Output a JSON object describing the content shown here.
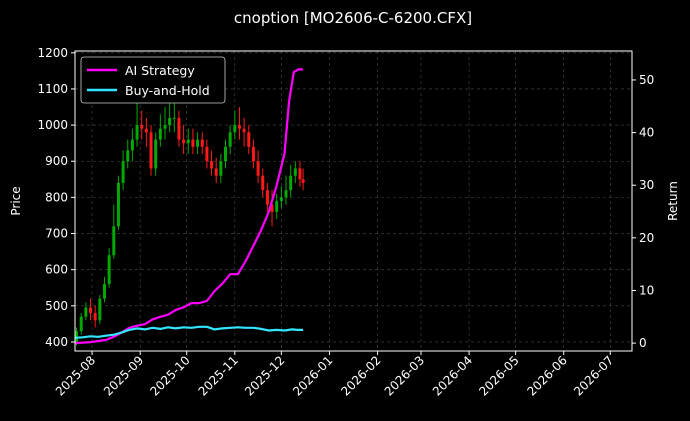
{
  "chart_data": {
    "type": "line",
    "title": "cnoption [MO2606-C-6200.CFX]",
    "xlabel": "",
    "ylabel_left": "Price",
    "ylabel_right": "Return",
    "x_ticks": [
      "2025-08",
      "2025-09",
      "2025-10",
      "2025-11",
      "2025-12",
      "2026-01",
      "2026-02",
      "2026-03",
      "2026-04",
      "2026-05",
      "2026-06",
      "2026-07"
    ],
    "xlim": [
      "2025-07-21",
      "2026-07-15"
    ],
    "ylim_left": [
      375,
      1205
    ],
    "y_ticks_left": [
      400,
      500,
      600,
      700,
      800,
      900,
      1000,
      1100,
      1200
    ],
    "ylim_right": [
      -1.5,
      55.5
    ],
    "y_ticks_right": [
      0,
      10,
      20,
      30,
      40,
      50
    ],
    "grid": true,
    "legend_position": "top-left",
    "background": "#000000",
    "series": [
      {
        "name": "AI Strategy",
        "color": "#ff00ff",
        "axis": "right",
        "x": [
          "2025-07-21",
          "2025-07-26",
          "2025-07-31",
          "2025-08-05",
          "2025-08-10",
          "2025-08-15",
          "2025-08-20",
          "2025-08-25",
          "2025-08-30",
          "2025-09-04",
          "2025-09-09",
          "2025-09-14",
          "2025-09-19",
          "2025-09-24",
          "2025-09-29",
          "2025-10-04",
          "2025-10-09",
          "2025-10-14",
          "2025-10-19",
          "2025-10-24",
          "2025-10-29",
          "2025-11-03",
          "2025-11-08",
          "2025-11-13",
          "2025-11-18",
          "2025-11-23",
          "2025-11-28",
          "2025-12-03",
          "2025-12-06",
          "2025-12-09",
          "2025-12-12",
          "2025-12-15"
        ],
        "values": [
          0.0,
          0.1,
          0.2,
          0.4,
          0.6,
          1.2,
          2.0,
          2.9,
          3.3,
          3.6,
          4.5,
          5.0,
          5.4,
          6.3,
          6.8,
          7.6,
          7.6,
          8.0,
          9.9,
          11.3,
          13.1,
          13.1,
          15.6,
          18.5,
          21.5,
          25.0,
          30.0,
          36.0,
          46.0,
          51.5,
          52.0,
          52.0
        ]
      },
      {
        "name": "Buy-and-Hold",
        "color": "#33e6ff",
        "axis": "right",
        "x": [
          "2025-07-21",
          "2025-07-26",
          "2025-07-31",
          "2025-08-05",
          "2025-08-10",
          "2025-08-15",
          "2025-08-20",
          "2025-08-25",
          "2025-08-30",
          "2025-09-04",
          "2025-09-09",
          "2025-09-14",
          "2025-09-19",
          "2025-09-24",
          "2025-09-29",
          "2025-10-04",
          "2025-10-09",
          "2025-10-14",
          "2025-10-19",
          "2025-10-24",
          "2025-10-29",
          "2025-11-03",
          "2025-11-08",
          "2025-11-13",
          "2025-11-18",
          "2025-11-23",
          "2025-11-28",
          "2025-12-03",
          "2025-12-08",
          "2025-12-11",
          "2025-12-15"
        ],
        "values": [
          1.0,
          1.1,
          1.3,
          1.2,
          1.4,
          1.6,
          2.0,
          2.5,
          2.8,
          2.6,
          2.9,
          2.7,
          3.0,
          2.8,
          3.0,
          2.9,
          3.1,
          3.1,
          2.6,
          2.8,
          2.9,
          3.0,
          2.9,
          2.9,
          2.7,
          2.4,
          2.5,
          2.4,
          2.6,
          2.5,
          2.5
        ]
      }
    ],
    "candles": {
      "up_color": "#00aa00",
      "down_color": "#ff1a1a",
      "x": [
        "2025-07-22",
        "2025-07-25",
        "2025-07-28",
        "2025-07-31",
        "2025-08-03",
        "2025-08-06",
        "2025-08-09",
        "2025-08-12",
        "2025-08-15",
        "2025-08-18",
        "2025-08-21",
        "2025-08-24",
        "2025-08-27",
        "2025-08-30",
        "2025-09-02",
        "2025-09-05",
        "2025-09-08",
        "2025-09-11",
        "2025-09-14",
        "2025-09-17",
        "2025-09-20",
        "2025-09-23",
        "2025-09-26",
        "2025-09-29",
        "2025-10-02",
        "2025-10-05",
        "2025-10-08",
        "2025-10-11",
        "2025-10-14",
        "2025-10-17",
        "2025-10-20",
        "2025-10-23",
        "2025-10-26",
        "2025-10-29",
        "2025-11-01",
        "2025-11-04",
        "2025-11-07",
        "2025-11-10",
        "2025-11-13",
        "2025-11-16",
        "2025-11-19",
        "2025-11-22",
        "2025-11-25",
        "2025-11-28",
        "2025-12-01",
        "2025-12-04",
        "2025-12-07",
        "2025-12-10",
        "2025-12-13",
        "2025-12-15"
      ],
      "open": [
        400,
        430,
        470,
        495,
        480,
        460,
        520,
        560,
        640,
        720,
        840,
        900,
        930,
        960,
        1000,
        990,
        980,
        880,
        960,
        990,
        1000,
        1020,
        1020,
        960,
        950,
        960,
        940,
        960,
        940,
        900,
        880,
        860,
        900,
        940,
        980,
        1000,
        990,
        980,
        940,
        900,
        860,
        820,
        780,
        760,
        790,
        800,
        820,
        860,
        880,
        850
      ],
      "close": [
        430,
        470,
        495,
        480,
        460,
        520,
        560,
        640,
        720,
        840,
        900,
        930,
        960,
        1000,
        990,
        980,
        880,
        960,
        990,
        1000,
        1020,
        1020,
        960,
        950,
        960,
        940,
        960,
        940,
        900,
        880,
        860,
        900,
        940,
        980,
        1000,
        990,
        980,
        940,
        900,
        860,
        820,
        780,
        760,
        790,
        800,
        820,
        860,
        880,
        850,
        840
      ],
      "high": [
        440,
        480,
        510,
        520,
        500,
        530,
        580,
        660,
        780,
        860,
        930,
        960,
        990,
        1070,
        1040,
        1020,
        1000,
        980,
        1030,
        1050,
        1080,
        1060,
        1040,
        1000,
        990,
        990,
        980,
        980,
        960,
        930,
        910,
        920,
        960,
        1000,
        1040,
        1050,
        1020,
        1000,
        960,
        930,
        880,
        840,
        820,
        810,
        830,
        860,
        890,
        900,
        900,
        880
      ],
      "low": [
        390,
        420,
        460,
        460,
        440,
        450,
        510,
        550,
        630,
        710,
        820,
        880,
        900,
        940,
        960,
        940,
        860,
        860,
        940,
        960,
        980,
        980,
        940,
        920,
        920,
        920,
        920,
        920,
        880,
        860,
        840,
        840,
        880,
        920,
        960,
        960,
        940,
        920,
        880,
        840,
        800,
        760,
        720,
        740,
        770,
        780,
        800,
        840,
        830,
        820
      ]
    }
  }
}
